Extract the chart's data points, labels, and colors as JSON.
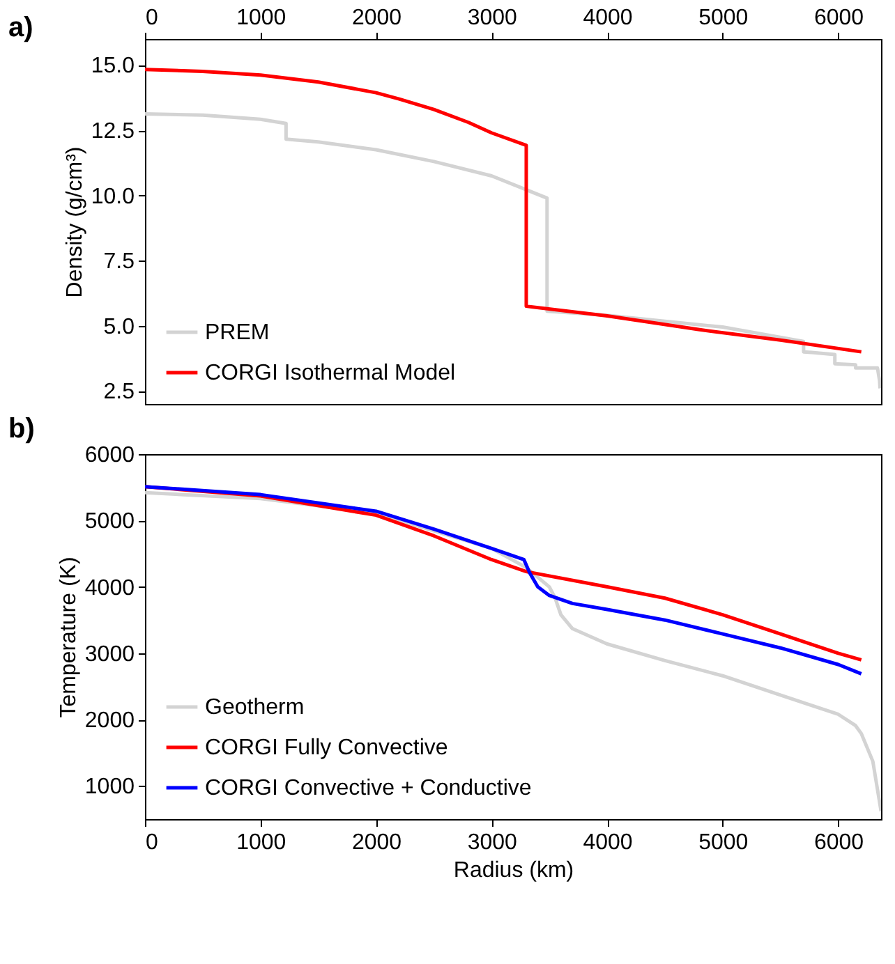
{
  "chart_data": [
    {
      "type": "line",
      "ylabel": "Density (g/cm³)",
      "annotations": [
        "a)"
      ],
      "xlim": [
        0,
        6371
      ],
      "x2lim": [
        0,
        6371
      ],
      "x2ticks": [
        0,
        1000,
        2000,
        3000,
        4000,
        5000,
        6000
      ],
      "ylim": [
        2,
        16
      ],
      "yticks": [
        2.5,
        {
          "value": 5,
          "label": "5.0"
        },
        7.5,
        {
          "value": 10,
          "label": "10.0"
        },
        12.5,
        {
          "value": 15,
          "label": "15.0"
        }
      ],
      "legend": "bottom left",
      "series": [
        {
          "name": "PREM",
          "color": "#d3d3d3",
          "x": [
            0,
            500,
            1000,
            1221,
            1221,
            1500,
            2000,
            2500,
            3000,
            3480,
            3480,
            4000,
            5000,
            5700,
            5701,
            5771,
            5971,
            5971,
            6151,
            6151,
            6340,
            6358,
            6362
          ],
          "values": [
            13.13,
            13.08,
            12.92,
            12.76,
            12.16,
            12.05,
            11.75,
            11.3,
            10.75,
            9.9,
            5.56,
            5.4,
            4.95,
            4.4,
            4.0,
            3.98,
            3.9,
            3.54,
            3.5,
            3.38,
            3.38,
            2.9,
            2.6
          ]
        },
        {
          "name": "CORGI Isothermal Model",
          "color": "#ff0000",
          "x": [
            0,
            500,
            1000,
            1500,
            2000,
            2200,
            2500,
            2800,
            3000,
            3300,
            3300,
            4000,
            4800,
            5500,
            6200
          ],
          "values": [
            14.83,
            14.76,
            14.62,
            14.35,
            13.94,
            13.7,
            13.3,
            12.8,
            12.4,
            11.92,
            5.75,
            5.38,
            4.85,
            4.45,
            4.0
          ]
        }
      ]
    },
    {
      "type": "line",
      "xlabel": "Radius (km)",
      "ylabel": "Temperature (K)",
      "annotations": [
        "b)"
      ],
      "xlim": [
        0,
        6371
      ],
      "xticks": [
        0,
        1000,
        2000,
        3000,
        4000,
        5000,
        6000
      ],
      "ylim": [
        500,
        6000
      ],
      "yticks": [
        1000,
        2000,
        3000,
        4000,
        5000,
        6000
      ],
      "legend": "bottom left",
      "series": [
        {
          "name": "Geotherm",
          "color": "#d3d3d3",
          "x": [
            0,
            1000,
            2000,
            3000,
            3300,
            3500,
            3550,
            3600,
            3700,
            4000,
            4500,
            5000,
            5500,
            6000,
            6150,
            6200,
            6300,
            6371
          ],
          "values": [
            5420,
            5330,
            5110,
            4580,
            4290,
            4000,
            3830,
            3580,
            3370,
            3140,
            2890,
            2660,
            2370,
            2080,
            1910,
            1790,
            1370,
            620
          ]
        },
        {
          "name": "CORGI Fully Convective",
          "color": "#ff0000",
          "x": [
            0,
            1000,
            2000,
            2500,
            3000,
            3300,
            4000,
            4500,
            5000,
            5500,
            6000,
            6200
          ],
          "values": [
            5510,
            5370,
            5080,
            4770,
            4410,
            4230,
            4000,
            3830,
            3580,
            3290,
            3000,
            2900
          ]
        },
        {
          "name": "CORGI Convective + Conductive",
          "color": "#0000ff",
          "x": [
            0,
            1000,
            2000,
            2500,
            3000,
            3280,
            3330,
            3400,
            3500,
            3700,
            4000,
            4500,
            5000,
            5500,
            6000,
            6200
          ],
          "values": [
            5510,
            5390,
            5140,
            4870,
            4580,
            4410,
            4210,
            4000,
            3870,
            3750,
            3660,
            3500,
            3290,
            3080,
            2830,
            2690
          ]
        }
      ]
    }
  ]
}
